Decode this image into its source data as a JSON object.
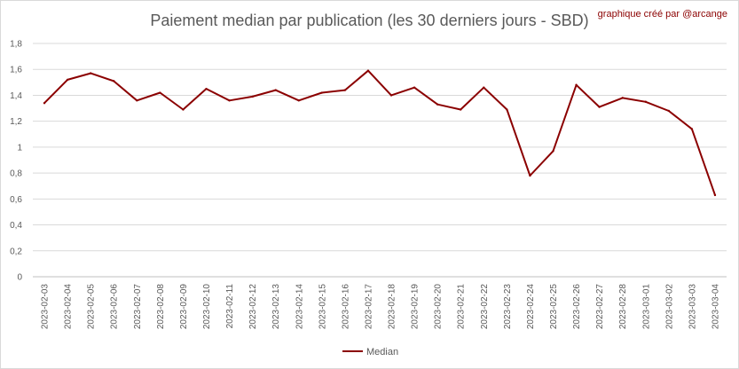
{
  "chart_data": {
    "type": "line",
    "title": "Paiement median par publication (les 30 derniers jours - SBD)",
    "credit": "graphique créé par @arcange",
    "ylim": [
      0,
      1.8
    ],
    "ytick_values": [
      0,
      0.2,
      0.4,
      0.6,
      0.8,
      1,
      1.2,
      1.4,
      1.6,
      1.8
    ],
    "ytick_labels": [
      "0",
      "0,2",
      "0,4",
      "0,6",
      "0,8",
      "1",
      "1,2",
      "1,4",
      "1,6",
      "1,8"
    ],
    "grid": "horizontal",
    "legend_position": "bottom",
    "categories": [
      "2023-02-03",
      "2023-02-04",
      "2023-02-05",
      "2023-02-06",
      "2023-02-07",
      "2023-02-08",
      "2023-02-09",
      "2023-02-10",
      "2023-02-11",
      "2023-02-12",
      "2023-02-13",
      "2023-02-14",
      "2023-02-15",
      "2023-02-16",
      "2023-02-17",
      "2023-02-18",
      "2023-02-19",
      "2023-02-20",
      "2023-02-21",
      "2023-02-22",
      "2023-02-23",
      "2023-02-24",
      "2023-02-25",
      "2023-02-26",
      "2023-02-27",
      "2023-02-28",
      "2023-03-01",
      "2023-03-02",
      "2023-03-03",
      "2023-03-04"
    ],
    "series": [
      {
        "name": "Median",
        "color": "#8b0000",
        "values": [
          1.34,
          1.52,
          1.57,
          1.51,
          1.36,
          1.42,
          1.29,
          1.45,
          1.36,
          1.39,
          1.44,
          1.36,
          1.42,
          1.44,
          1.59,
          1.4,
          1.46,
          1.33,
          1.29,
          1.46,
          1.29,
          0.78,
          0.97,
          1.48,
          1.31,
          1.38,
          1.35,
          1.28,
          1.14,
          0.63
        ]
      }
    ]
  }
}
